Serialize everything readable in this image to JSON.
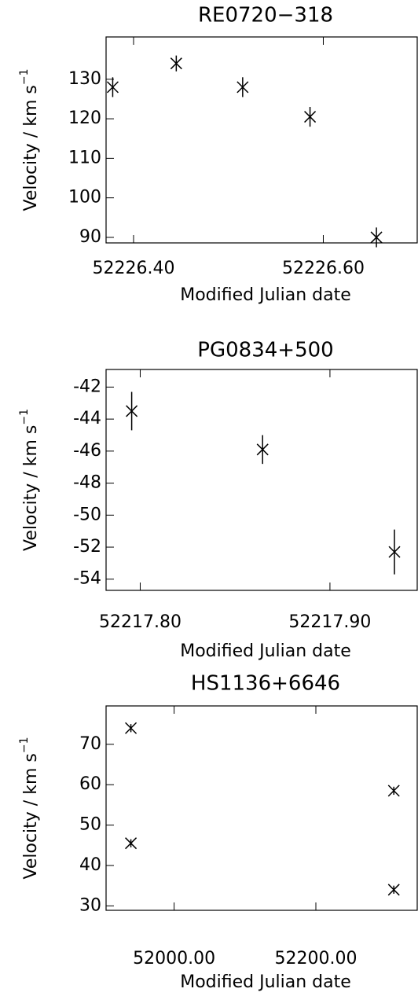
{
  "chart_data": [
    {
      "type": "scatter",
      "title": "RE0720−318",
      "xlabel": "Modified Julian date",
      "ylabel": {
        "text": "Velocity / km s",
        "superscript": "−1"
      },
      "x": [
        52226.378,
        52226.445,
        52226.515,
        52226.586,
        52226.656
      ],
      "values": [
        128,
        134,
        128,
        120.5,
        90
      ],
      "errors": [
        2.5,
        2,
        2.5,
        2.5,
        2.5
      ],
      "xlim": [
        52226.371,
        52226.699
      ],
      "ylim": [
        88.6,
        140.7
      ],
      "xticks": [
        {
          "value": 52226.4,
          "label": "52226.40"
        },
        {
          "value": 52226.6,
          "label": "52226.60"
        }
      ],
      "yticks": [
        90,
        100,
        110,
        120,
        130
      ],
      "color": "#000000"
    },
    {
      "type": "scatter",
      "title": "PG0834+500",
      "xlabel": "Modified Julian date",
      "ylabel": {
        "text": "Velocity / km s",
        "superscript": "−1"
      },
      "x": [
        52217.7955,
        52217.8645,
        52217.934
      ],
      "values": [
        -43.5,
        -45.9,
        -52.3
      ],
      "errors": [
        1.2,
        0.9,
        1.4
      ],
      "xlim": [
        52217.782,
        52217.946
      ],
      "ylim": [
        -54.7,
        -40.9
      ],
      "xticks": [
        {
          "value": 52217.8,
          "label": "52217.80"
        },
        {
          "value": 52217.9,
          "label": "52217.90"
        }
      ],
      "yticks": [
        -54,
        -52,
        -50,
        -48,
        -46,
        -44,
        -42
      ],
      "color": "#000000"
    },
    {
      "type": "scatter",
      "title": "HS1136+6646",
      "xlabel": "Modified Julian date",
      "ylabel": {
        "text": "Velocity / km s",
        "superscript": "−1"
      },
      "x": [
        51939,
        51939,
        52310,
        52310
      ],
      "values": [
        74,
        45.5,
        58.5,
        34
      ],
      "errors": [
        1,
        1,
        1,
        1
      ],
      "xlim": [
        51904,
        52343
      ],
      "ylim": [
        28.9,
        79.5
      ],
      "xticks": [
        {
          "value": 52000,
          "label": "52000.00"
        },
        {
          "value": 52200,
          "label": "52200.00"
        }
      ],
      "yticks": [
        30,
        40,
        50,
        60,
        70
      ],
      "color": "#000000"
    }
  ]
}
